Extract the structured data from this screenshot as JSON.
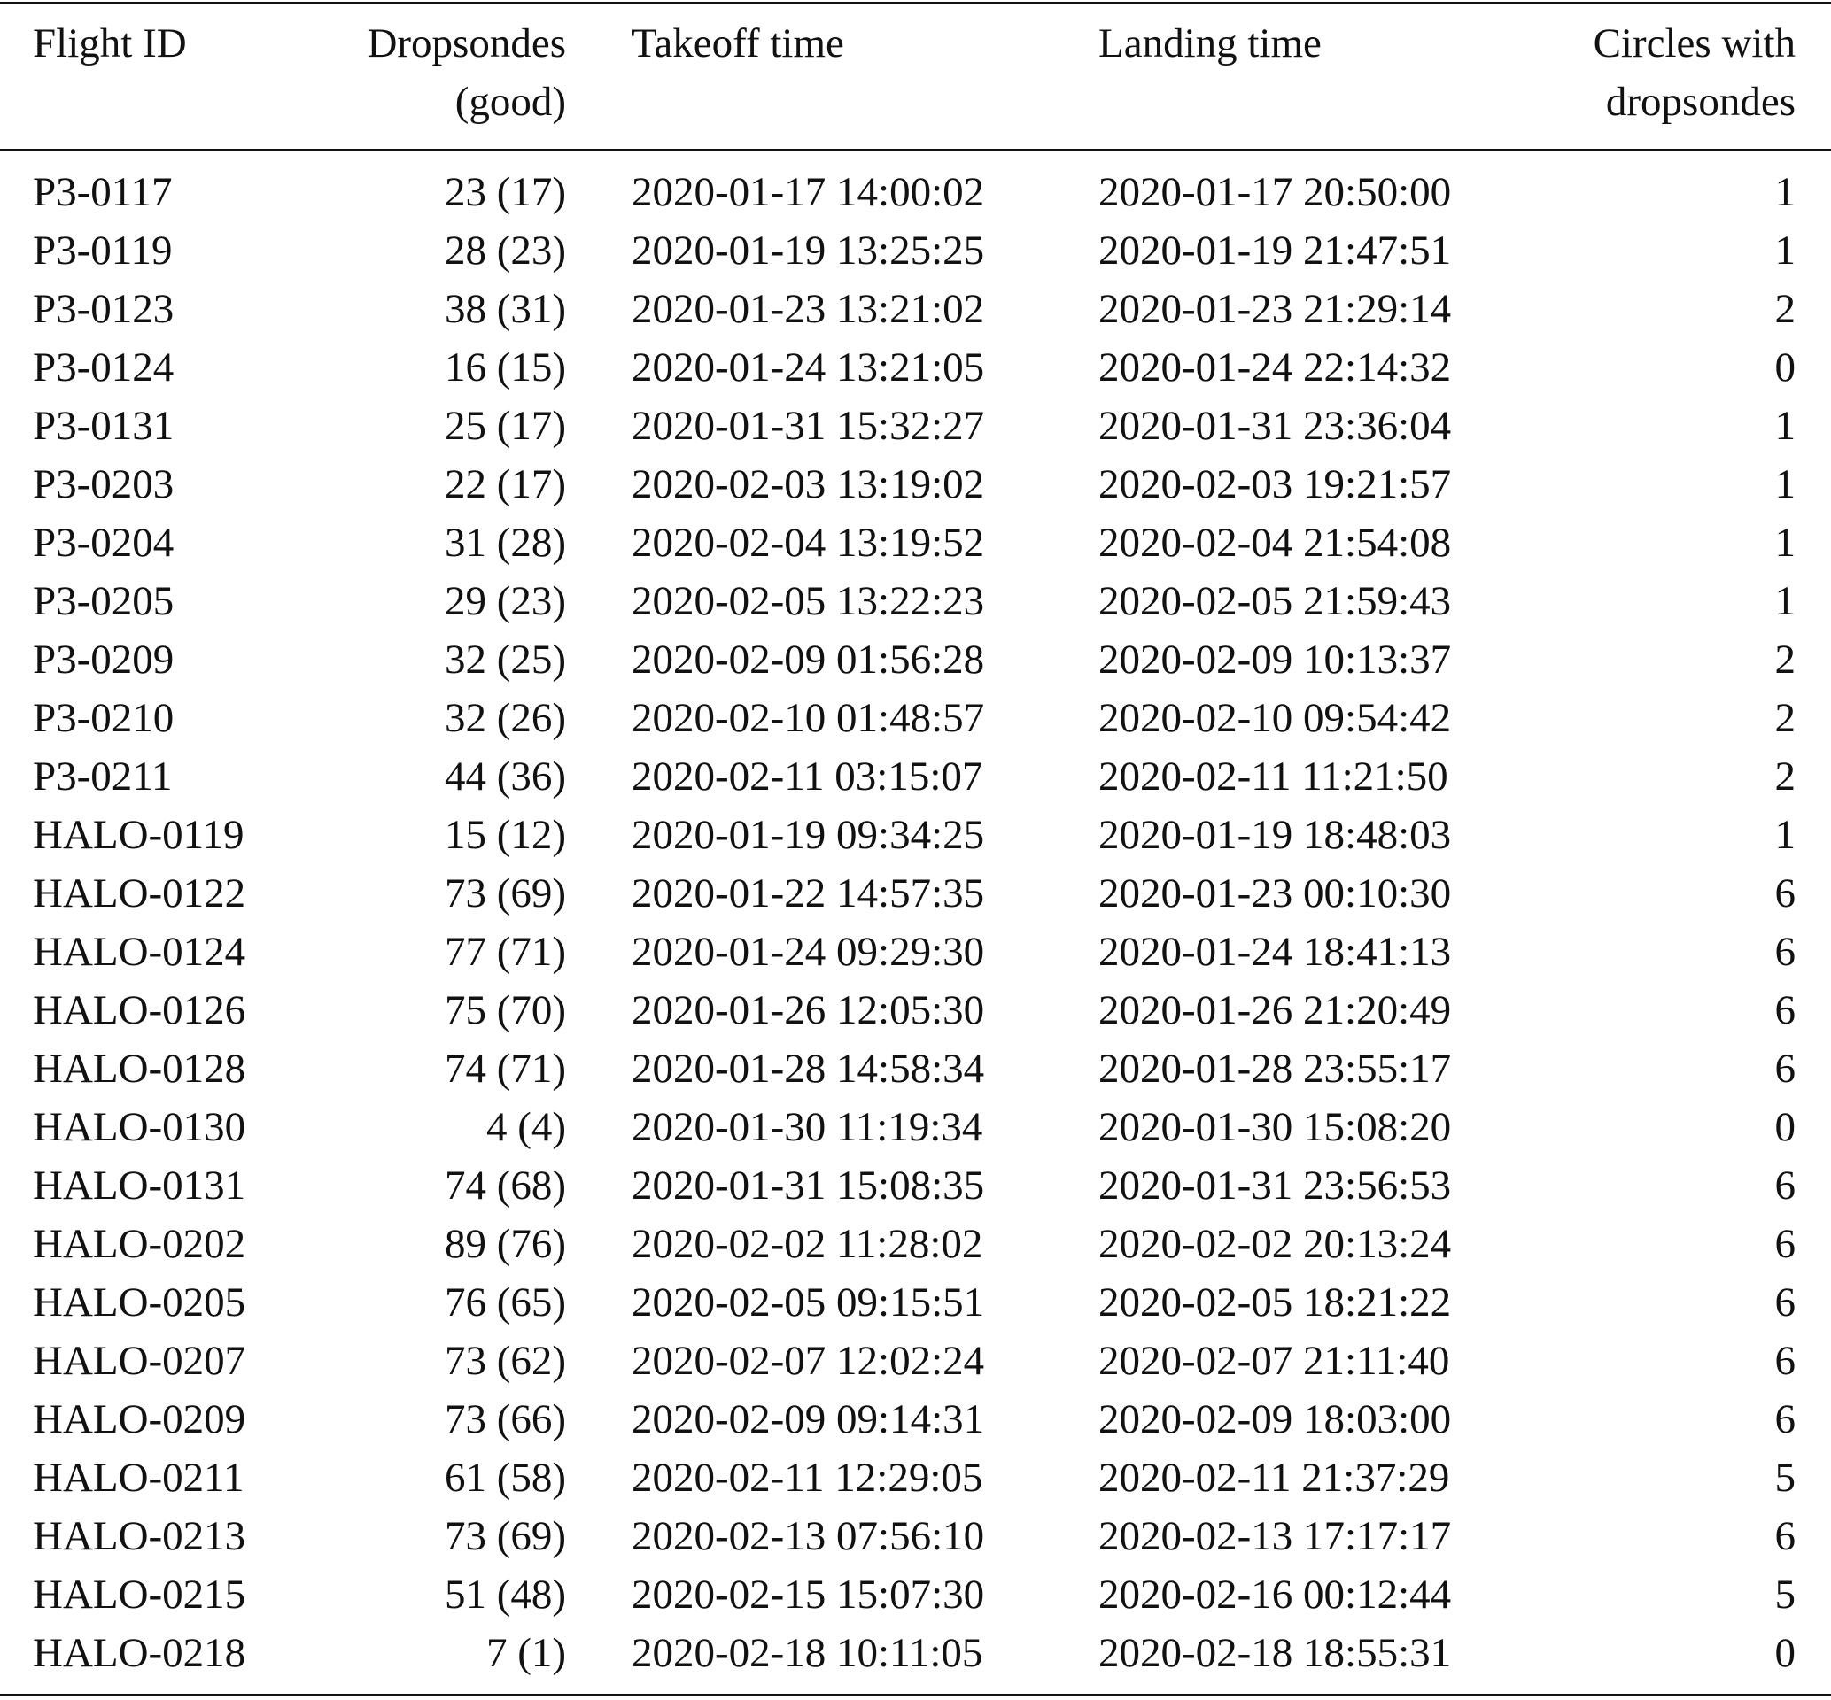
{
  "table": {
    "headers": [
      {
        "line1": "Flight ID",
        "line2": ""
      },
      {
        "line1": "Dropsondes",
        "line2": "(good)"
      },
      {
        "line1": "Takeoff time",
        "line2": ""
      },
      {
        "line1": "Landing time",
        "line2": ""
      },
      {
        "line1": "Circles with",
        "line2": "dropsondes"
      }
    ],
    "rows": [
      [
        "P3-0117",
        "23 (17)",
        "2020-01-17 14:00:02",
        "2020-01-17 20:50:00",
        "1"
      ],
      [
        "P3-0119",
        "28 (23)",
        "2020-01-19 13:25:25",
        "2020-01-19 21:47:51",
        "1"
      ],
      [
        "P3-0123",
        "38 (31)",
        "2020-01-23 13:21:02",
        "2020-01-23 21:29:14",
        "2"
      ],
      [
        "P3-0124",
        "16 (15)",
        "2020-01-24 13:21:05",
        "2020-01-24 22:14:32",
        "0"
      ],
      [
        "P3-0131",
        "25 (17)",
        "2020-01-31 15:32:27",
        "2020-01-31 23:36:04",
        "1"
      ],
      [
        "P3-0203",
        "22 (17)",
        "2020-02-03 13:19:02",
        "2020-02-03 19:21:57",
        "1"
      ],
      [
        "P3-0204",
        "31 (28)",
        "2020-02-04 13:19:52",
        "2020-02-04 21:54:08",
        "1"
      ],
      [
        "P3-0205",
        "29 (23)",
        "2020-02-05 13:22:23",
        "2020-02-05 21:59:43",
        "1"
      ],
      [
        "P3-0209",
        "32 (25)",
        "2020-02-09 01:56:28",
        "2020-02-09 10:13:37",
        "2"
      ],
      [
        "P3-0210",
        "32 (26)",
        "2020-02-10 01:48:57",
        "2020-02-10 09:54:42",
        "2"
      ],
      [
        "P3-0211",
        "44 (36)",
        "2020-02-11 03:15:07",
        "2020-02-11 11:21:50",
        "2"
      ],
      [
        "HALO-0119",
        "15 (12)",
        "2020-01-19 09:34:25",
        "2020-01-19 18:48:03",
        "1"
      ],
      [
        "HALO-0122",
        "73 (69)",
        "2020-01-22 14:57:35",
        "2020-01-23 00:10:30",
        "6"
      ],
      [
        "HALO-0124",
        "77 (71)",
        "2020-01-24 09:29:30",
        "2020-01-24 18:41:13",
        "6"
      ],
      [
        "HALO-0126",
        "75 (70)",
        "2020-01-26 12:05:30",
        "2020-01-26 21:20:49",
        "6"
      ],
      [
        "HALO-0128",
        "74 (71)",
        "2020-01-28 14:58:34",
        "2020-01-28 23:55:17",
        "6"
      ],
      [
        "HALO-0130",
        "4 (4)",
        "2020-01-30 11:19:34",
        "2020-01-30 15:08:20",
        "0"
      ],
      [
        "HALO-0131",
        "74 (68)",
        "2020-01-31 15:08:35",
        "2020-01-31 23:56:53",
        "6"
      ],
      [
        "HALO-0202",
        "89 (76)",
        "2020-02-02 11:28:02",
        "2020-02-02 20:13:24",
        "6"
      ],
      [
        "HALO-0205",
        "76 (65)",
        "2020-02-05 09:15:51",
        "2020-02-05 18:21:22",
        "6"
      ],
      [
        "HALO-0207",
        "73 (62)",
        "2020-02-07 12:02:24",
        "2020-02-07 21:11:40",
        "6"
      ],
      [
        "HALO-0209",
        "73 (66)",
        "2020-02-09 09:14:31",
        "2020-02-09 18:03:00",
        "6"
      ],
      [
        "HALO-0211",
        "61 (58)",
        "2020-02-11 12:29:05",
        "2020-02-11 21:37:29",
        "5"
      ],
      [
        "HALO-0213",
        "73 (69)",
        "2020-02-13 07:56:10",
        "2020-02-13 17:17:17",
        "6"
      ],
      [
        "HALO-0215",
        "51 (48)",
        "2020-02-15 15:07:30",
        "2020-02-16 00:12:44",
        "5"
      ],
      [
        "HALO-0218",
        "7 (1)",
        "2020-02-18 10:11:05",
        "2020-02-18 18:55:31",
        "0"
      ]
    ]
  }
}
